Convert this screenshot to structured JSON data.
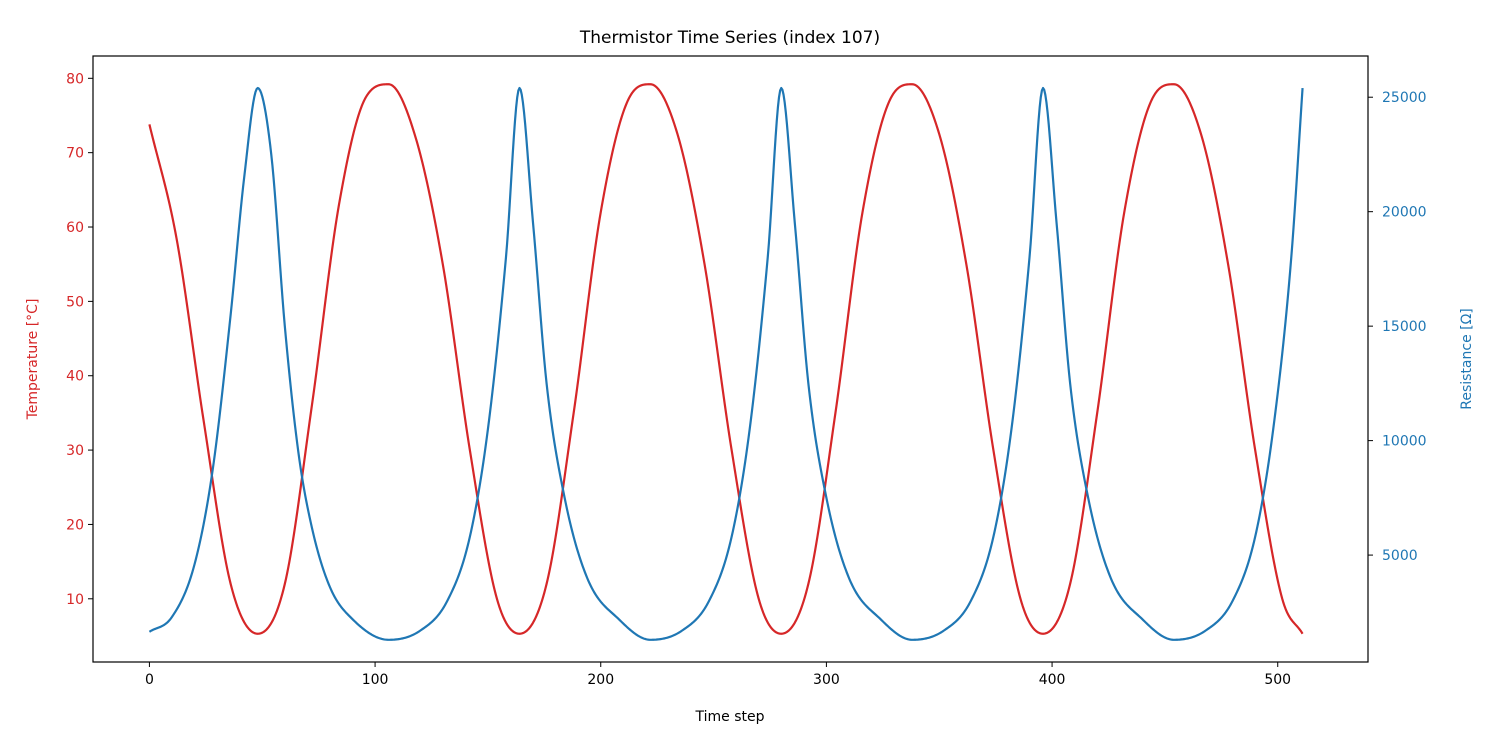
{
  "chart_data": {
    "type": "line",
    "title": "Thermistor Time Series (index 107)",
    "xlabel": "Time step",
    "y_left_label": "Temperature [°C]",
    "y_right_label": "Resistance [Ω]",
    "xlim": [
      -25,
      540
    ],
    "y_left_lim": [
      1.5,
      83.0
    ],
    "y_right_lim": [
      330,
      26800
    ],
    "x_ticks": [
      0,
      100,
      200,
      300,
      400,
      500
    ],
    "y_left_ticks": [
      10,
      20,
      30,
      40,
      50,
      60,
      70,
      80
    ],
    "y_right_ticks": [
      5000,
      10000,
      15000,
      20000,
      25000
    ],
    "grid": false,
    "legend": "none",
    "colors": {
      "temperature": "#d62728",
      "resistance": "#1f77b4",
      "axes": "#000000"
    },
    "x_range": [
      0,
      511
    ],
    "series": [
      {
        "key": "temperature",
        "axis": "left",
        "x": [
          0,
          12,
          24,
          36,
          48,
          60,
          72,
          84,
          96,
          106,
          118,
          130,
          142,
          154,
          164,
          176,
          188,
          200,
          212,
          222,
          234,
          246,
          258,
          270,
          280,
          292,
          304,
          316,
          328,
          338,
          350,
          362,
          374,
          386,
          396,
          408,
          420,
          432,
          444,
          454,
          466,
          478,
          490,
          502,
          511
        ],
        "y": [
          73.8,
          58.5,
          34.0,
          12.0,
          5.3,
          12.0,
          36.0,
          63.0,
          77.5,
          79.2,
          72.0,
          55.0,
          30.0,
          10.0,
          5.3,
          12.0,
          35.0,
          62.0,
          77.0,
          79.2,
          72.5,
          55.0,
          30.0,
          10.0,
          5.3,
          12.0,
          35.0,
          62.0,
          77.0,
          79.2,
          72.5,
          55.0,
          30.0,
          10.0,
          5.3,
          12.0,
          35.0,
          62.0,
          77.0,
          79.2,
          72.5,
          55.0,
          30.0,
          10.0,
          5.3
        ]
      },
      {
        "key": "resistance",
        "axis": "right",
        "x": [
          0,
          10,
          20,
          28,
          36,
          42,
          48,
          54,
          60,
          66,
          72,
          80,
          90,
          106,
          120,
          132,
          142,
          150,
          158,
          164,
          170,
          176,
          184,
          194,
          208,
          222,
          236,
          248,
          258,
          266,
          274,
          280,
          286,
          292,
          300,
          310,
          324,
          338,
          352,
          364,
          374,
          382,
          390,
          396,
          402,
          408,
          416,
          426,
          440,
          454,
          468,
          480,
          490,
          498,
          506,
          511
        ],
        "y": [
          1650,
          2300,
          4600,
          8700,
          15500,
          21500,
          25400,
          22500,
          15000,
          9500,
          6200,
          3600,
          2200,
          1300,
          1700,
          3000,
          5800,
          10500,
          18000,
          25400,
          19500,
          12500,
          7500,
          4000,
          2200,
          1300,
          1700,
          3000,
          5800,
          10500,
          18000,
          25400,
          19500,
          12500,
          7500,
          4000,
          2200,
          1300,
          1700,
          3000,
          5800,
          10500,
          18000,
          25400,
          19500,
          12500,
          7500,
          4000,
          2200,
          1300,
          1700,
          3000,
          5800,
          10500,
          18000,
          25400
        ]
      }
    ]
  }
}
